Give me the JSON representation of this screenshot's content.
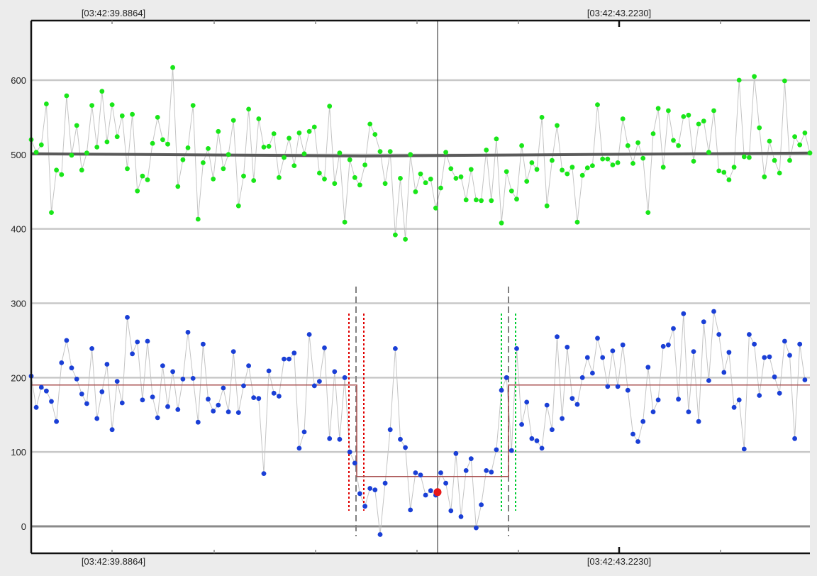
{
  "header": {
    "top_left_time": "[03:42:39.8864]",
    "top_right_time": "[03:42:43.2230]",
    "bottom_left_time": "[03:42:39.8864]",
    "bottom_right_time": "[03:42:43.2230]"
  },
  "chart_data": {
    "type": "scatter",
    "title": "",
    "xlabel": "",
    "ylabel": "",
    "ylim": [
      -15,
      680
    ],
    "y_ticks": [
      0,
      100,
      200,
      300,
      400,
      500,
      600
    ],
    "grid": true,
    "x_time_labels": [
      "[03:42:39.8864]",
      "[03:42:43.2230]"
    ],
    "series": [
      {
        "color": "#19e619",
        "trend": [
          501,
          500,
          499,
          498,
          499,
          500,
          501,
          502
        ],
        "values": [
          520,
          503,
          513,
          568,
          422,
          479,
          473,
          579,
          499,
          539,
          479,
          502,
          566,
          510,
          585,
          517,
          567,
          524,
          552,
          481,
          554,
          451,
          471,
          466,
          515,
          550,
          520,
          514,
          617,
          457,
          493,
          509,
          566,
          413,
          489,
          508,
          467,
          531,
          481,
          500,
          546,
          431,
          471,
          561,
          465,
          548,
          510,
          511,
          528,
          469,
          496,
          522,
          485,
          529,
          501,
          531,
          537,
          475,
          467,
          565,
          461,
          502,
          409,
          493,
          469,
          459,
          486,
          541,
          527,
          504,
          461,
          504,
          392,
          468,
          386,
          500,
          450,
          474,
          462,
          467,
          428,
          455,
          503,
          481,
          468,
          470,
          439,
          480,
          439,
          438,
          506,
          438,
          521,
          408,
          477,
          451,
          440,
          512,
          464,
          489,
          480,
          550,
          431,
          492,
          539,
          479,
          474,
          483,
          409,
          472,
          482,
          485,
          567,
          494,
          494,
          486,
          489,
          548,
          512,
          488,
          516,
          495,
          422,
          528,
          562,
          483,
          559,
          519,
          512,
          551,
          553,
          491,
          541,
          545,
          503,
          559,
          478,
          476,
          466,
          483,
          600,
          497,
          496,
          605,
          536,
          470,
          518,
          492,
          475,
          599,
          492,
          524,
          513,
          529,
          502
        ]
      },
      {
        "color": "#1a3fd6",
        "values": [
          202,
          160,
          187,
          182,
          168,
          141,
          220,
          250,
          213,
          198,
          178,
          165,
          239,
          145,
          181,
          218,
          130,
          195,
          166,
          281,
          232,
          248,
          170,
          249,
          174,
          146,
          216,
          161,
          208,
          157,
          198,
          261,
          199,
          140,
          245,
          171,
          155,
          163,
          186,
          154,
          235,
          153,
          189,
          216,
          173,
          172,
          71,
          209,
          179,
          175,
          225,
          225,
          233,
          105,
          127,
          258,
          189,
          195,
          240,
          118,
          208,
          117,
          200,
          100,
          85,
          44,
          27,
          51,
          49,
          -11,
          58,
          130,
          239,
          117,
          106,
          22,
          72,
          69,
          42,
          48,
          42,
          72,
          58,
          21,
          98,
          13,
          75,
          91,
          -2,
          29,
          75,
          73,
          103,
          183,
          200,
          102,
          239,
          137,
          167,
          118,
          115,
          105,
          163,
          130,
          255,
          145,
          241,
          172,
          164,
          200,
          227,
          206,
          253,
          227,
          188,
          236,
          188,
          244,
          183,
          124,
          114,
          141,
          214,
          154,
          170,
          242,
          244,
          266,
          171,
          286,
          154,
          235,
          141,
          275,
          196,
          289,
          258,
          207,
          234,
          160,
          170,
          104,
          258,
          245,
          176,
          227,
          228,
          201,
          179,
          249,
          230,
          118,
          245,
          197
        ]
      }
    ],
    "step_line": {
      "color": "#a85050",
      "levels": [
        190,
        67,
        190
      ]
    },
    "marker": {
      "color": "#e81818"
    },
    "thresholds": {
      "red": "#e00000",
      "green": "#00cc33",
      "gray": "#808080"
    }
  }
}
